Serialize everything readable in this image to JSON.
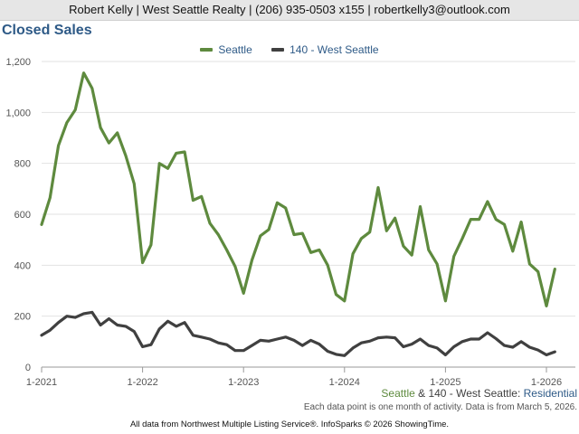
{
  "header": {
    "text": "Robert Kelly | West Seattle Realty | (206) 935-0503 x155 | robertkelly3@outlook.com"
  },
  "subtitle": {
    "series1": "Seattle",
    "amp": " & ",
    "series2": "140 - West Seattle",
    "sep": ": ",
    "type": "Residential"
  },
  "note": "Each data point is one month of activity. Data is from March 5, 2026.",
  "footer": "All data from Northwest Multiple Listing Service®. InfoSparks © 2026 ShowingTime.",
  "colors": {
    "seattle": "#5e8a3e",
    "west_seattle": "#404040",
    "title": "#2e5a87"
  },
  "chart_data": {
    "type": "line",
    "title": "Closed Sales",
    "x_start": "2021-01",
    "x_ticks": [
      "1-2021",
      "1-2022",
      "1-2023",
      "1-2024",
      "1-2025",
      "1-2026"
    ],
    "y_ticks": [
      "0",
      "200",
      "400",
      "600",
      "800",
      "1,000",
      "1,200"
    ],
    "ylim": [
      0,
      1200
    ],
    "grid": true,
    "legend_position": "top",
    "series": [
      {
        "name": "Seattle",
        "color": "#5e8a3e",
        "values": [
          560,
          665,
          870,
          960,
          1010,
          1155,
          1095,
          940,
          880,
          920,
          830,
          720,
          410,
          480,
          800,
          780,
          840,
          845,
          655,
          670,
          565,
          520,
          460,
          395,
          290,
          420,
          515,
          540,
          645,
          625,
          520,
          525,
          450,
          460,
          400,
          285,
          260,
          445,
          505,
          530,
          705,
          535,
          585,
          475,
          440,
          630,
          460,
          405,
          260,
          435,
          505,
          580,
          580,
          650,
          580,
          560,
          455,
          570,
          405,
          375,
          240,
          385
        ]
      },
      {
        "name": "140 - West Seattle",
        "color": "#404040",
        "values": [
          125,
          145,
          175,
          200,
          195,
          210,
          215,
          165,
          190,
          165,
          160,
          140,
          80,
          88,
          150,
          180,
          160,
          175,
          125,
          118,
          110,
          95,
          88,
          65,
          65,
          85,
          105,
          102,
          110,
          118,
          105,
          85,
          105,
          90,
          62,
          50,
          45,
          75,
          95,
          102,
          115,
          118,
          115,
          80,
          90,
          110,
          85,
          75,
          48,
          80,
          100,
          110,
          110,
          135,
          112,
          85,
          78,
          100,
          78,
          67,
          48,
          60
        ]
      }
    ]
  }
}
